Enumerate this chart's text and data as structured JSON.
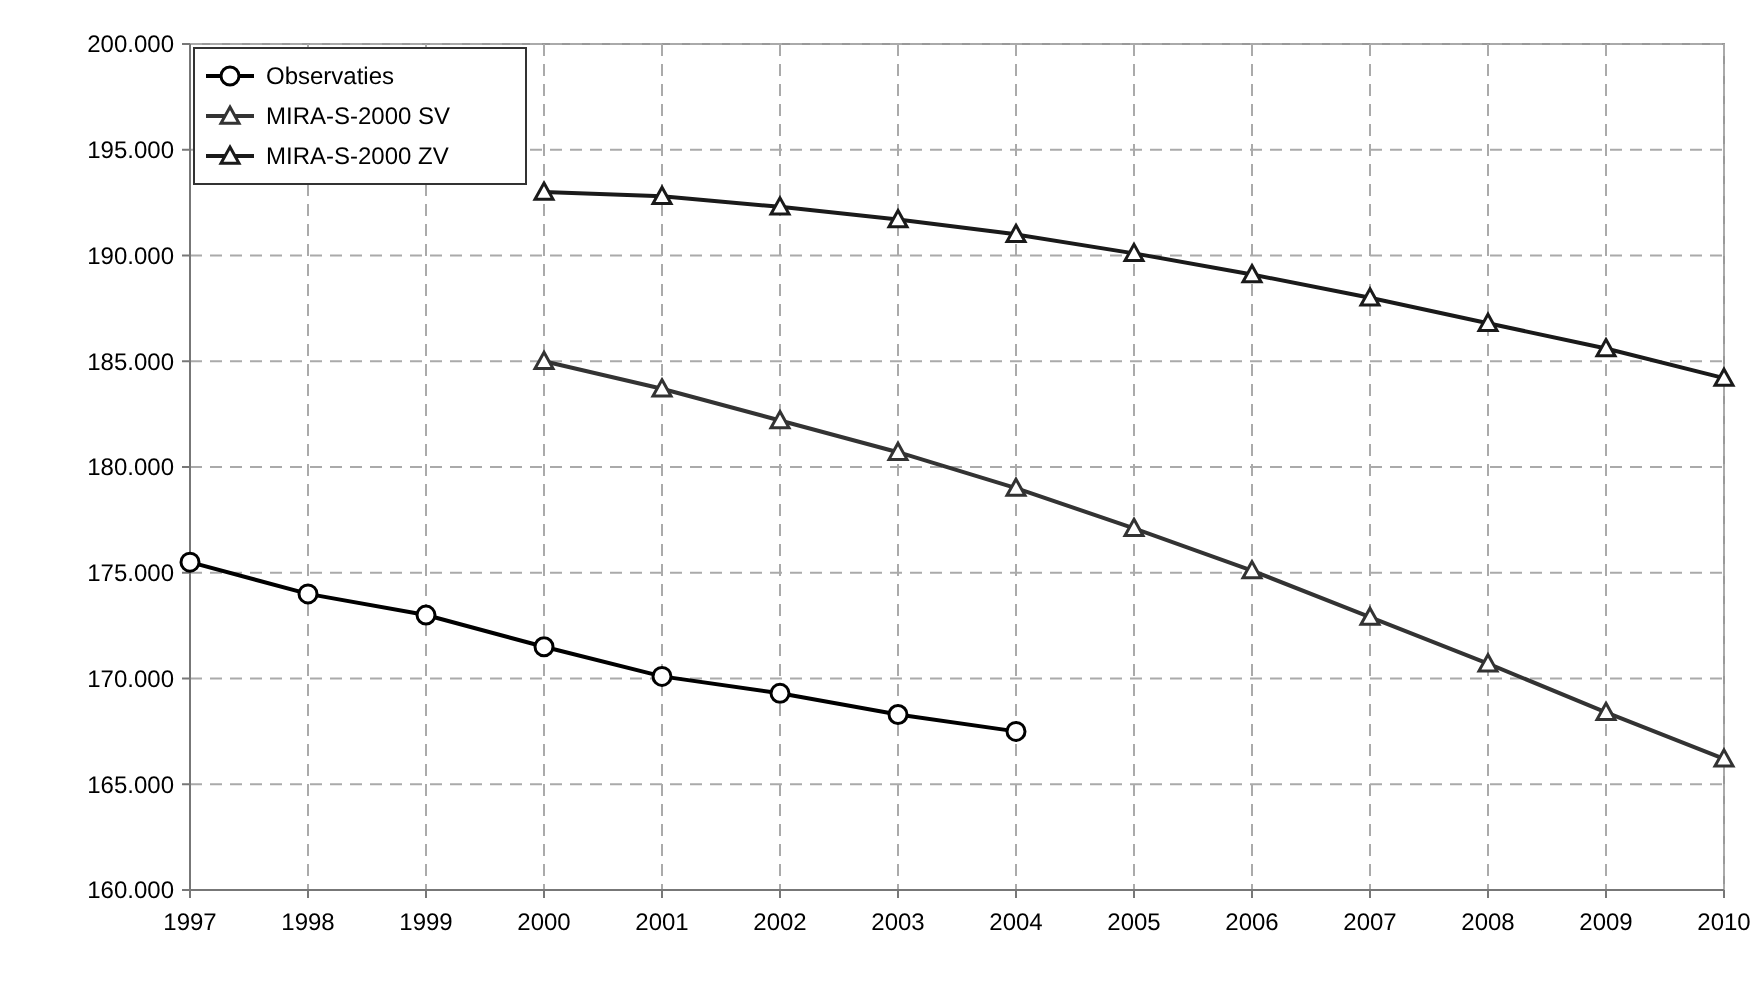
{
  "chart_data": {
    "type": "line",
    "xlim": [
      1997,
      2010
    ],
    "xticks": [
      1997,
      1998,
      1999,
      2000,
      2001,
      2002,
      2003,
      2004,
      2005,
      2006,
      2007,
      2008,
      2009,
      2010
    ],
    "ylim": [
      160000,
      200000
    ],
    "yticks": [
      {
        "value": 160000,
        "label": "160.000"
      },
      {
        "value": 165000,
        "label": "165.000"
      },
      {
        "value": 170000,
        "label": "170.000"
      },
      {
        "value": 175000,
        "label": "175.000"
      },
      {
        "value": 180000,
        "label": "180.000"
      },
      {
        "value": 185000,
        "label": "185.000"
      },
      {
        "value": 190000,
        "label": "190.000"
      },
      {
        "value": 195000,
        "label": "195.000"
      },
      {
        "value": 200000,
        "label": "200.000"
      }
    ],
    "grid": true,
    "legend": "top left",
    "line_style": "solid",
    "series": [
      {
        "name": "Observaties",
        "color": "#000000",
        "marker": "circle",
        "x": [
          1997,
          1998,
          1999,
          2000,
          2001,
          2002,
          2003,
          2004
        ],
        "values": [
          175500,
          174000,
          173000,
          171500,
          170100,
          169300,
          168300,
          167500
        ]
      },
      {
        "name": "MIRA-S-2000 SV",
        "color": "#333333",
        "marker": "triangle",
        "x": [
          2000,
          2001,
          2002,
          2003,
          2004,
          2005,
          2006,
          2007,
          2008,
          2009,
          2010
        ],
        "values": [
          185000,
          183700,
          182200,
          180700,
          179000,
          177100,
          175100,
          172900,
          170700,
          168400,
          166200
        ]
      },
      {
        "name": "MIRA-S-2000 ZV",
        "color": "#1a1a1a",
        "marker": "triangle",
        "x": [
          2000,
          2001,
          2002,
          2003,
          2004,
          2005,
          2006,
          2007,
          2008,
          2009,
          2010
        ],
        "values": [
          193000,
          192800,
          192300,
          191700,
          191000,
          190100,
          189100,
          188000,
          186800,
          185600,
          184200
        ]
      }
    ]
  }
}
